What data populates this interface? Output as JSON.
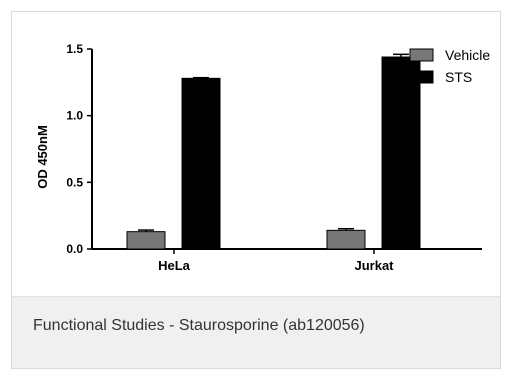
{
  "chart_data": {
    "type": "bar",
    "categories": [
      "HeLa",
      "Jurkat"
    ],
    "series": [
      {
        "name": "Vehicle",
        "values": [
          0.13,
          0.14
        ],
        "errors": [
          0.012,
          0.012
        ],
        "color": "#777777"
      },
      {
        "name": "STS",
        "values": [
          1.28,
          1.44
        ],
        "errors": [
          0.005,
          0.02
        ],
        "color": "#000000"
      }
    ],
    "ylabel": "OD 450nM",
    "xlabel": "",
    "ylim": [
      0,
      1.5
    ],
    "yticks": [
      0.0,
      0.5,
      1.0,
      1.5
    ],
    "ytick_labels": [
      "0.0",
      "0.5",
      "1.0",
      "1.5"
    ],
    "legend_position": "top-right",
    "grid": false,
    "error_bars": true
  },
  "caption": {
    "text": "Functional Studies - Staurosporine (ab120056)"
  }
}
